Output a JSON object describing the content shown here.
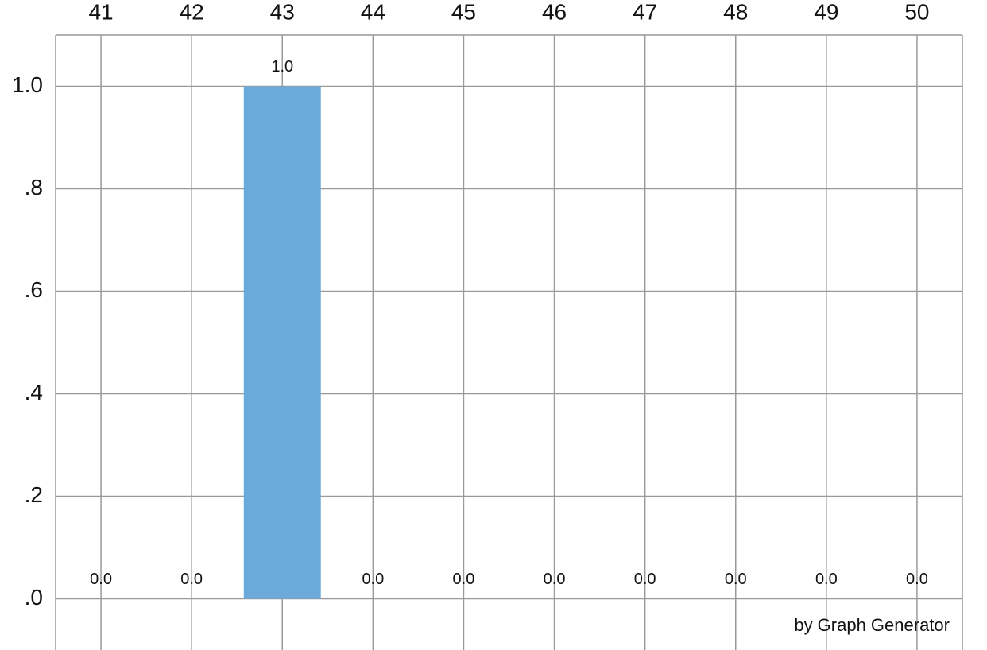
{
  "chart_data": {
    "type": "bar",
    "categories": [
      "41",
      "42",
      "43",
      "44",
      "45",
      "46",
      "47",
      "48",
      "49",
      "50"
    ],
    "values": [
      0,
      0,
      1,
      0,
      0,
      0,
      0,
      0,
      0,
      0
    ],
    "value_labels": [
      "0.0",
      "0.0",
      "1.0",
      "0.0",
      "0.0",
      "0.0",
      "0.0",
      "0.0",
      "0.0",
      "0.0"
    ],
    "color": "#6aabdb",
    "ylim": [
      -0.1,
      1.1
    ],
    "yticks": [
      {
        "value": 0,
        "label": ".0"
      },
      {
        "value": 0.2,
        "label": ".2"
      },
      {
        "value": 0.4,
        "label": ".4"
      },
      {
        "value": 0.6,
        "label": ".6"
      },
      {
        "value": 0.8,
        "label": ".8"
      },
      {
        "value": 1,
        "label": "1.0"
      }
    ],
    "grid": true,
    "credit": "by Graph Generator"
  }
}
